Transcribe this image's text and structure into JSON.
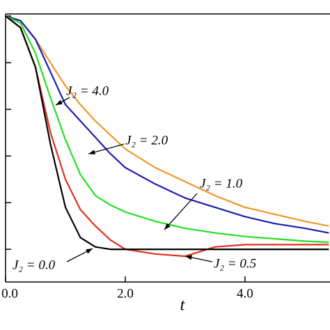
{
  "chart_data": {
    "type": "line",
    "xlabel": "t",
    "x": [
      0,
      0.25,
      0.5,
      0.75,
      1.0,
      1.25,
      1.5,
      1.75,
      2.0,
      2.5,
      3.0,
      3.5,
      4.0,
      4.5,
      5.0,
      5.4
    ],
    "series": [
      {
        "name": "J₂ = 4.0",
        "color": "#f0962a",
        "values": [
          1.0,
          0.98,
          0.9,
          0.8,
          0.7,
          0.62,
          0.55,
          0.49,
          0.43,
          0.35,
          0.29,
          0.23,
          0.18,
          0.15,
          0.12,
          0.1
        ]
      },
      {
        "name": "J₂ = 2.0",
        "color": "#1c1cb0",
        "values": [
          1.0,
          0.98,
          0.9,
          0.76,
          0.62,
          0.55,
          0.48,
          0.41,
          0.35,
          0.28,
          0.22,
          0.18,
          0.14,
          0.11,
          0.09,
          0.07
        ]
      },
      {
        "name": "J₂ = 1.0",
        "color": "#22e022",
        "values": [
          1.0,
          0.97,
          0.84,
          0.65,
          0.47,
          0.32,
          0.23,
          0.19,
          0.16,
          0.12,
          0.09,
          0.07,
          0.055,
          0.045,
          0.035,
          0.03
        ]
      },
      {
        "name": "J₂ = 0.5",
        "color": "#e0301e",
        "values": [
          1.0,
          0.95,
          0.78,
          0.5,
          0.3,
          0.17,
          0.1,
          0.04,
          0.0,
          -0.02,
          -0.03,
          0.01,
          0.02,
          0.02,
          0.02,
          0.02
        ]
      },
      {
        "name": "J₂ = 0.0",
        "color": "#000000",
        "values": [
          1.0,
          0.95,
          0.78,
          0.45,
          0.18,
          0.05,
          0.01,
          0,
          0,
          0,
          0,
          0,
          0,
          0,
          0,
          0
        ]
      }
    ],
    "xlim": [
      0,
      5.42
    ],
    "ylim": [
      -0.14,
      1.0
    ],
    "xticks": [
      {
        "value": 0,
        "label": "0.0"
      },
      {
        "value": 2,
        "label": "2.0"
      },
      {
        "value": 4,
        "label": "4.0"
      }
    ],
    "yticks": [
      0,
      0.2,
      0.4,
      0.6,
      0.8,
      1.0
    ]
  }
}
